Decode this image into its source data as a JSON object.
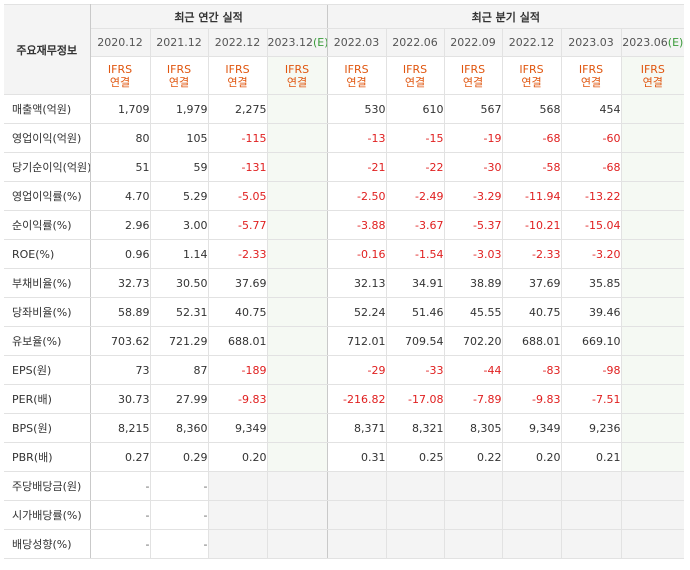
{
  "table": {
    "corner_label": "주요재무정보",
    "annual_header": "최근 연간 실적",
    "quarter_header": "최근 분기 실적",
    "annual_periods": [
      "2020.12",
      "2021.12",
      "2022.12",
      "2023.12(E)"
    ],
    "quarter_periods": [
      "2022.03",
      "2022.06",
      "2022.09",
      "2022.12",
      "2023.03",
      "2023.06(E)"
    ],
    "ifrs_label": "IFRS",
    "consolidated_label": "연결",
    "rows": [
      {
        "label": "매출액(억원)",
        "values": [
          "1,709",
          "1,979",
          "2,275",
          "",
          "530",
          "610",
          "567",
          "568",
          "454",
          ""
        ]
      },
      {
        "label": "영업이익(억원)",
        "values": [
          "80",
          "105",
          "-115",
          "",
          "-13",
          "-15",
          "-19",
          "-68",
          "-60",
          ""
        ]
      },
      {
        "label": "당기순이익(억원)",
        "values": [
          "51",
          "59",
          "-131",
          "",
          "-21",
          "-22",
          "-30",
          "-58",
          "-68",
          ""
        ]
      },
      {
        "label": "영업이익률(%)",
        "values": [
          "4.70",
          "5.29",
          "-5.05",
          "",
          "-2.50",
          "-2.49",
          "-3.29",
          "-11.94",
          "-13.22",
          ""
        ]
      },
      {
        "label": "순이익률(%)",
        "values": [
          "2.96",
          "3.00",
          "-5.77",
          "",
          "-3.88",
          "-3.67",
          "-5.37",
          "-10.21",
          "-15.04",
          ""
        ]
      },
      {
        "label": "ROE(%)",
        "values": [
          "0.96",
          "1.14",
          "-2.33",
          "",
          "-0.16",
          "-1.54",
          "-3.03",
          "-2.33",
          "-3.20",
          ""
        ]
      },
      {
        "label": "부채비율(%)",
        "values": [
          "32.73",
          "30.50",
          "37.69",
          "",
          "32.13",
          "34.91",
          "38.89",
          "37.69",
          "35.85",
          ""
        ]
      },
      {
        "label": "당좌비율(%)",
        "values": [
          "58.89",
          "52.31",
          "40.75",
          "",
          "52.24",
          "51.46",
          "45.55",
          "40.75",
          "39.46",
          ""
        ]
      },
      {
        "label": "유보율(%)",
        "values": [
          "703.62",
          "721.29",
          "688.01",
          "",
          "712.01",
          "709.54",
          "702.20",
          "688.01",
          "669.10",
          ""
        ]
      },
      {
        "label": "EPS(원)",
        "values": [
          "73",
          "87",
          "-189",
          "",
          "-29",
          "-33",
          "-44",
          "-83",
          "-98",
          ""
        ]
      },
      {
        "label": "PER(배)",
        "values": [
          "30.73",
          "27.99",
          "-9.83",
          "",
          "-216.82",
          "-17.08",
          "-7.89",
          "-9.83",
          "-7.51",
          ""
        ]
      },
      {
        "label": "BPS(원)",
        "values": [
          "8,215",
          "8,360",
          "9,349",
          "",
          "8,371",
          "8,321",
          "8,305",
          "9,349",
          "9,236",
          ""
        ]
      },
      {
        "label": "PBR(배)",
        "values": [
          "0.27",
          "0.29",
          "0.20",
          "",
          "0.31",
          "0.25",
          "0.22",
          "0.20",
          "0.21",
          ""
        ]
      },
      {
        "label": "주당배당금(원)",
        "values": [
          "-",
          "-",
          "",
          "",
          "",
          "",
          "",
          "",
          "",
          ""
        ]
      },
      {
        "label": "시가배당률(%)",
        "values": [
          "-",
          "-",
          "",
          "",
          "",
          "",
          "",
          "",
          "",
          ""
        ]
      },
      {
        "label": "배당성향(%)",
        "values": [
          "-",
          "-",
          "",
          "",
          "",
          "",
          "",
          "",
          "",
          ""
        ]
      }
    ],
    "colors": {
      "negative": "#e02020",
      "ifrs": "#e0560f",
      "estimate": "#3b9b3b",
      "header_bg": "#f4f4f4"
    }
  }
}
